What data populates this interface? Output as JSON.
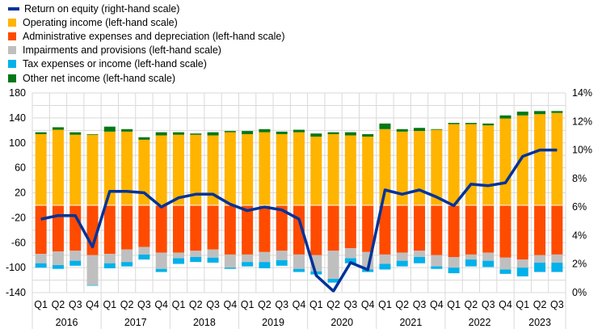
{
  "chart_data": {
    "type": "bar",
    "stacked": true,
    "title": "",
    "xlabel": "",
    "ylabel": "",
    "ylim": [
      -140,
      180
    ],
    "yticks": [
      180,
      140,
      100,
      60,
      20,
      -20,
      -60,
      -100,
      -140
    ],
    "y2lim": [
      0,
      14
    ],
    "y2ticks": [
      "14%",
      "12%",
      "10%",
      "8%",
      "6%",
      "4%",
      "2%",
      "0%"
    ],
    "y2ticks_values": [
      14,
      12,
      10,
      8,
      6,
      4,
      2,
      0
    ],
    "grid": true,
    "legend_position": "top-left",
    "years": [
      "2016",
      "2017",
      "2018",
      "2019",
      "2020",
      "2021",
      "2022",
      "2023"
    ],
    "year_quarter_counts": [
      4,
      4,
      4,
      4,
      4,
      4,
      4,
      3
    ],
    "categories": [
      "Q1",
      "Q2",
      "Q3",
      "Q4",
      "Q1",
      "Q2",
      "Q3",
      "Q4",
      "Q1",
      "Q2",
      "Q3",
      "Q4",
      "Q1",
      "Q2",
      "Q3",
      "Q4",
      "Q1",
      "Q2",
      "Q3",
      "Q4",
      "Q1",
      "Q2",
      "Q3",
      "Q4",
      "Q1",
      "Q2",
      "Q3",
      "Q4",
      "Q1",
      "Q2",
      "Q3"
    ],
    "series": [
      {
        "name": "Operating income (left-hand scale)",
        "color": "#FFB400",
        "values": [
          114,
          121,
          113,
          113,
          118,
          118,
          105,
          112,
          113,
          113,
          112,
          117,
          114,
          117,
          114,
          117,
          110,
          114,
          112,
          110,
          122,
          118,
          119,
          121,
          130,
          130,
          128,
          139,
          144,
          146,
          148
        ]
      },
      {
        "name": "Other net income (left-hand scale)",
        "color": "#007816",
        "values": [
          3,
          4,
          4,
          1,
          8,
          4,
          4,
          5,
          4,
          2,
          5,
          2,
          5,
          5,
          4,
          4,
          5,
          3,
          5,
          4,
          9,
          4,
          5,
          1,
          2,
          2,
          3,
          5,
          6,
          5,
          3
        ]
      },
      {
        "name": "Administrative expenses and depreciation (left-hand scale)",
        "color": "#FF4B00",
        "values": [
          -78,
          -74,
          -73,
          -80,
          -78,
          -71,
          -67,
          -76,
          -76,
          -73,
          -71,
          -79,
          -79,
          -75,
          -73,
          -79,
          -80,
          -73,
          -69,
          -75,
          -79,
          -76,
          -73,
          -80,
          -83,
          -79,
          -76,
          -84,
          -87,
          -80,
          -79
        ]
      },
      {
        "name": "Impairments and provisions (left-hand scale)",
        "color": "#BFBFBF",
        "values": [
          -15,
          -22,
          -16,
          -48,
          -15,
          -20,
          -12,
          -26,
          -9,
          -10,
          -13,
          -21,
          -12,
          -16,
          -15,
          -23,
          -26,
          -45,
          -16,
          -28,
          -15,
          -13,
          -10,
          -18,
          -17,
          -8,
          -13,
          -19,
          -13,
          -12,
          -13
        ]
      },
      {
        "name": "Tax expenses or income (left-hand scale)",
        "color": "#00B1EA",
        "values": [
          -7,
          -6,
          -8,
          -1,
          -8,
          -7,
          -8,
          -5,
          -9,
          -8,
          -8,
          -2,
          -7,
          -10,
          -9,
          -5,
          -5,
          -6,
          -8,
          -4,
          -9,
          -9,
          -10,
          -4,
          -9,
          -11,
          -10,
          -7,
          -14,
          -15,
          -15
        ]
      }
    ],
    "line_series": {
      "name": "Return on equity (right-hand scale)",
      "color": "#003299",
      "unit": "%",
      "values": [
        5.15,
        5.4,
        5.4,
        3.2,
        7.1,
        7.1,
        7.0,
        6.0,
        6.65,
        6.9,
        6.9,
        6.2,
        5.75,
        6.0,
        5.8,
        5.15,
        1.2,
        0.1,
        2.1,
        1.6,
        7.2,
        6.9,
        7.2,
        6.7,
        6.1,
        7.6,
        7.5,
        7.7,
        9.55,
        10.0,
        10.0
      ]
    },
    "legend_order": [
      {
        "label": "Return on equity (right-hand scale)",
        "color": "#003299",
        "kind": "line"
      },
      {
        "label": "Operating income (left-hand scale)",
        "color": "#FFB400",
        "kind": "box"
      },
      {
        "label": "Administrative expenses and depreciation (left-hand scale)",
        "color": "#FF4B00",
        "kind": "box"
      },
      {
        "label": "Impairments and provisions (left-hand scale)",
        "color": "#BFBFBF",
        "kind": "box"
      },
      {
        "label": "Tax expenses or income (left-hand scale)",
        "color": "#00B1EA",
        "kind": "box"
      },
      {
        "label": "Other net income (left-hand scale)",
        "color": "#007816",
        "kind": "box"
      }
    ]
  }
}
